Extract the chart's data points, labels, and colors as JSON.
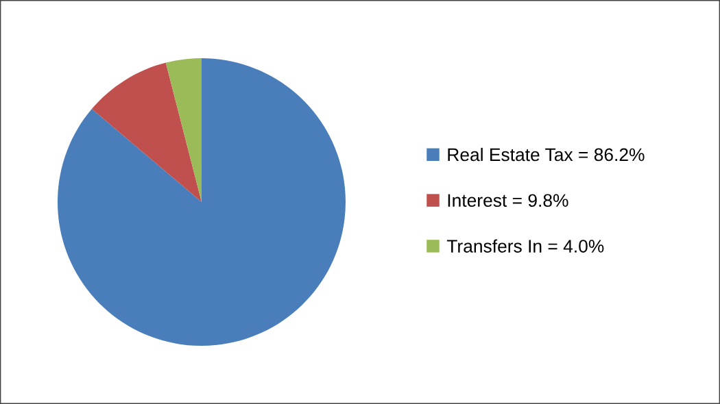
{
  "chart_data": {
    "type": "pie",
    "categories": [
      "Real Estate Tax = 86.2%",
      "Interest = 9.8%",
      "Transfers In = 4.0%"
    ],
    "values": [
      86.2,
      9.8,
      4.0
    ],
    "colors": [
      "#4a7ebb",
      "#c0504d",
      "#9bbb59"
    ],
    "legend": "right"
  }
}
